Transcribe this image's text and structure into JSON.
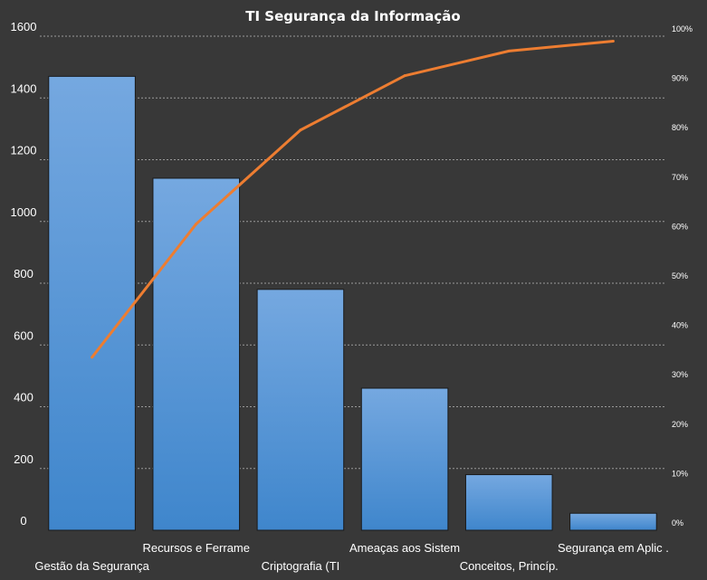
{
  "chart_data": {
    "type": "bar",
    "title": "TI Segurança da Informação",
    "categories": [
      "Gestão da Segurança",
      "Recursos e Ferrame",
      "Criptografia (TI",
      "Ameaças aos Sistem",
      "Conceitos, Princíp.",
      "Segurança em Aplic ."
    ],
    "series": [
      {
        "type": "bar",
        "axis": "left",
        "values": [
          1470,
          1140,
          780,
          460,
          180,
          55
        ]
      },
      {
        "type": "line",
        "axis": "right",
        "values": [
          35,
          62,
          81,
          92,
          97,
          99
        ]
      }
    ],
    "y_left": {
      "min": 0,
      "max": 1600,
      "ticks": [
        "0",
        "200",
        "400",
        "600",
        "800",
        "1000",
        "1200",
        "1400",
        "1600"
      ]
    },
    "y_right": {
      "min": 0,
      "max": 100,
      "ticks": [
        "0%",
        "10%",
        "20%",
        "30%",
        "40%",
        "50%",
        "60%",
        "70%",
        "80%",
        "90%",
        "100%"
      ]
    },
    "grid": true,
    "colors": {
      "background": "#383838",
      "bar_top": "#75a8e0",
      "bar_bottom": "#3f86cc",
      "line": "#ed7d31",
      "grid": "#9a9a9a",
      "text": "#ffffff"
    }
  }
}
